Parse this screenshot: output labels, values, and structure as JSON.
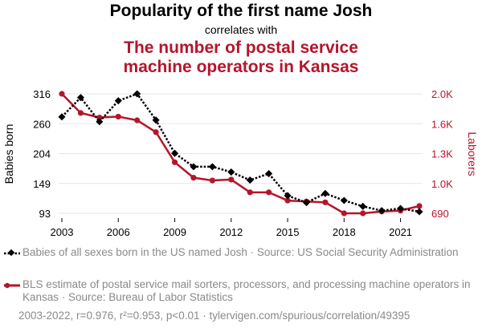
{
  "chart_data": {
    "type": "line",
    "title": "Popularity of the first name Josh",
    "subtitle": "correlates with",
    "title2": "The number of postal service machine operators in Kansas",
    "x": [
      2003,
      2004,
      2005,
      2006,
      2007,
      2008,
      2009,
      2010,
      2011,
      2012,
      2013,
      2014,
      2015,
      2016,
      2017,
      2018,
      2019,
      2020,
      2021,
      2022
    ],
    "xticks": [
      "2003",
      "2006",
      "2009",
      "2012",
      "2015",
      "2018",
      "2021"
    ],
    "series": [
      {
        "name": "Babies of all sexes born in the US named Josh",
        "axis": "left",
        "color": "#000000",
        "values": [
          273,
          309,
          264,
          303,
          316,
          267,
          205,
          180,
          180,
          170,
          155,
          167,
          126,
          113,
          130,
          117,
          106,
          98,
          102,
          96
        ]
      },
      {
        "name": "BLS estimate of postal service mail sorters, processors, and processing machine operators in Kansas",
        "axis": "right",
        "color": "#b5152b",
        "values": [
          2000,
          1790,
          1740,
          1750,
          1710,
          1580,
          1250,
          1080,
          1050,
          1060,
          920,
          920,
          830,
          820,
          810,
          690,
          690,
          710,
          720,
          770
        ]
      }
    ],
    "y_left": {
      "label": "Babies born",
      "ticks": [
        "93",
        "149",
        "204",
        "260",
        "316"
      ],
      "range": [
        93,
        316
      ]
    },
    "y_right": {
      "label": "Laborers",
      "ticks": [
        "690",
        "1.0K",
        "1.3K",
        "1.6K",
        "2.0K"
      ],
      "range": [
        690,
        2000
      ]
    },
    "grid": "horizontal"
  },
  "legend": [
    {
      "text": "Babies of all sexes born in the US named Josh · Source: US Social Security Administration"
    },
    {
      "text": "BLS estimate of postal service mail sorters, processors, and processing machine operators in Kansas · Source: Bureau of Labor Statistics"
    }
  ],
  "footer": "2003-2022, r=0.976, r²=0.953, p<0.01 · tylervigen.com/spurious/correlation/49395"
}
